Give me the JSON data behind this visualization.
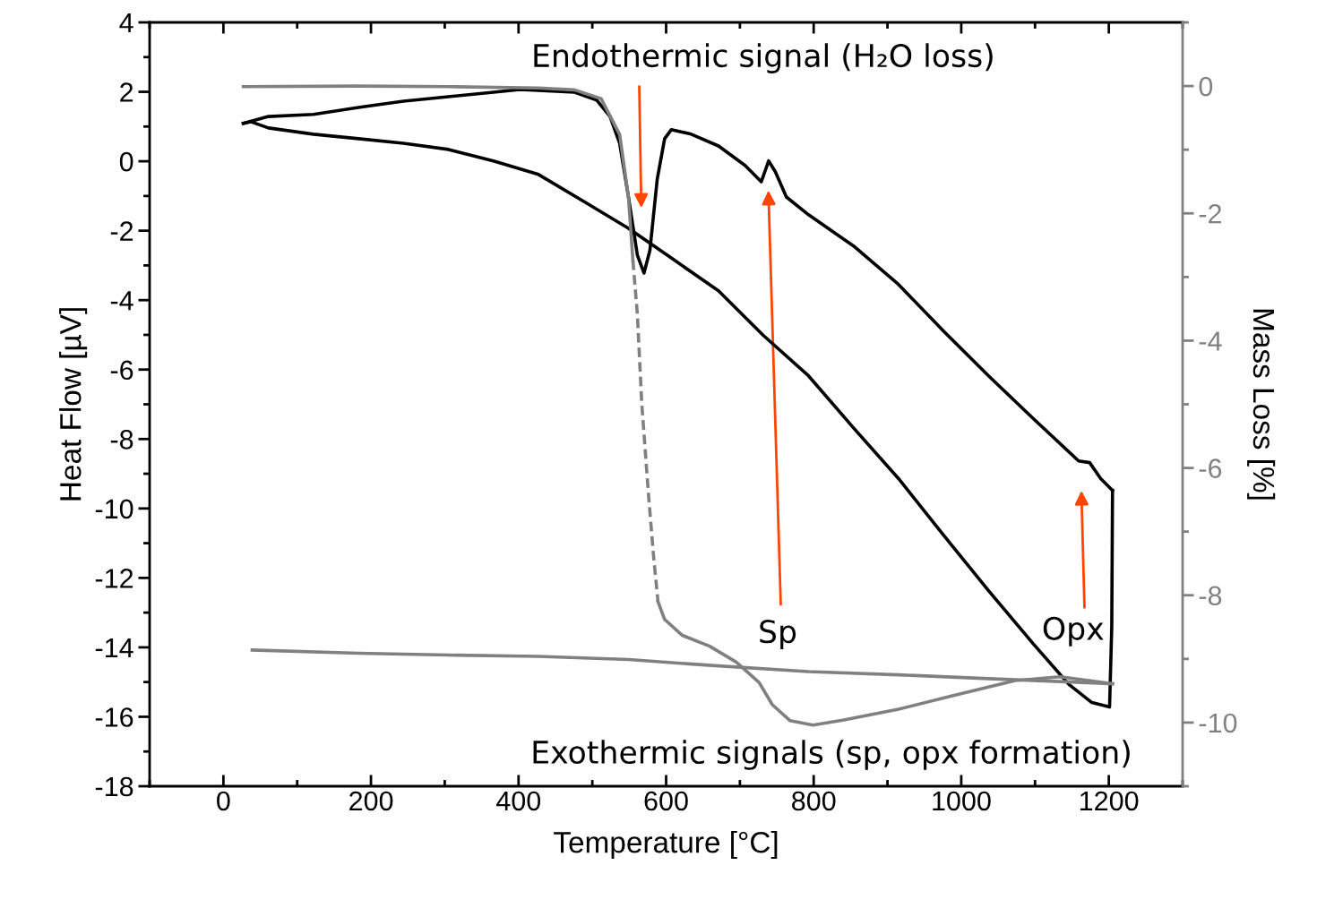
{
  "chart_data": {
    "type": "line",
    "xlabel": "Temperature [°C]",
    "ylabel": "Heat Flow [µV]",
    "y2label": "Mass Loss [%]",
    "xlim": [
      -100,
      1300
    ],
    "xticks": [
      0,
      200,
      400,
      600,
      800,
      1000,
      1200
    ],
    "ylim": [
      -18,
      4
    ],
    "yticks": [
      -18,
      -16,
      -14,
      -12,
      -10,
      -8,
      -6,
      -4,
      -2,
      0,
      2,
      4
    ],
    "y2lim": [
      -11,
      1
    ],
    "y2ticks": [
      -10,
      -8,
      -6,
      -4,
      -2,
      0
    ],
    "grid": false,
    "legend": false,
    "marker": "none",
    "series": [
      {
        "color": "#000000",
        "line_style": "solid",
        "x": [
          27,
          61,
          122,
          183,
          244,
          305,
          366,
          402,
          476,
          506,
          524,
          537,
          549,
          561,
          570,
          578,
          588,
          598,
          607,
          634,
          671,
          707,
          729,
          739,
          748,
          763,
          793,
          854,
          915,
          976,
          1037,
          1098,
          1159,
          1174,
          1189,
          1205
        ],
        "values": [
          1.09,
          1.29,
          1.35,
          1.55,
          1.73,
          1.86,
          1.99,
          2.07,
          1.99,
          1.76,
          1.29,
          0.52,
          -1.03,
          -2.7,
          -3.22,
          -2.57,
          -0.51,
          0.65,
          0.91,
          0.78,
          0.44,
          -0.12,
          -0.59,
          0.01,
          -0.3,
          -1.03,
          -1.54,
          -2.44,
          -3.55,
          -4.89,
          -6.18,
          -7.42,
          -8.63,
          -8.68,
          -9.14,
          -9.48
        ]
      },
      {
        "color": "#000000",
        "line_style": "solid",
        "x": [
          27,
          37,
          61,
          122,
          183,
          244,
          305,
          366,
          427,
          488,
          549,
          610,
          671,
          732,
          793,
          854,
          915,
          976,
          1037,
          1098,
          1146,
          1177,
          1201,
          1204,
          1205
        ],
        "values": [
          1.09,
          1.14,
          0.96,
          0.78,
          0.65,
          0.52,
          0.34,
          0.01,
          -0.38,
          -1.15,
          -1.93,
          -2.83,
          -3.73,
          -5.02,
          -6.18,
          -7.68,
          -9.14,
          -10.77,
          -12.37,
          -13.91,
          -15.07,
          -15.59,
          -15.72,
          -13.4,
          -9.48
        ]
      },
      {
        "axis": "y2",
        "color": "#808080",
        "line_style": "solid",
        "x": [
          27,
          183,
          305,
          427,
          476,
          512,
          537,
          549,
          555
        ],
        "values": [
          -0.01,
          0.0,
          -0.01,
          -0.03,
          -0.06,
          -0.2,
          -0.76,
          -1.75,
          -2.74
        ]
      },
      {
        "axis": "y2",
        "color": "#808080",
        "line_style": "dashed",
        "x": [
          555,
          561,
          567,
          576,
          583,
          589
        ],
        "values": [
          -2.74,
          -3.58,
          -4.99,
          -6.4,
          -7.39,
          -8.1
        ]
      },
      {
        "axis": "y2",
        "color": "#808080",
        "line_style": "solid",
        "x": [
          589,
          598,
          622,
          659,
          695,
          726,
          744,
          768,
          799,
          841,
          915,
          988,
          1073,
          1134,
          1205
        ],
        "values": [
          -8.1,
          -8.38,
          -8.63,
          -8.8,
          -9.05,
          -9.37,
          -9.72,
          -9.97,
          -10.04,
          -9.96,
          -9.79,
          -9.58,
          -9.34,
          -9.28,
          -9.39
        ]
      },
      {
        "axis": "y2",
        "color": "#808080",
        "line_style": "solid",
        "x": [
          39,
          183,
          305,
          427,
          549,
          671,
          793,
          915,
          1037,
          1205
        ],
        "values": [
          -8.86,
          -8.91,
          -8.94,
          -8.96,
          -9.01,
          -9.11,
          -9.2,
          -9.25,
          -9.31,
          -9.39
        ]
      }
    ],
    "annotations": [
      "Endothermic signal (H₂O loss)",
      "Sp",
      "Opx",
      "Exothermic signals (sp, opx formation)"
    ]
  }
}
